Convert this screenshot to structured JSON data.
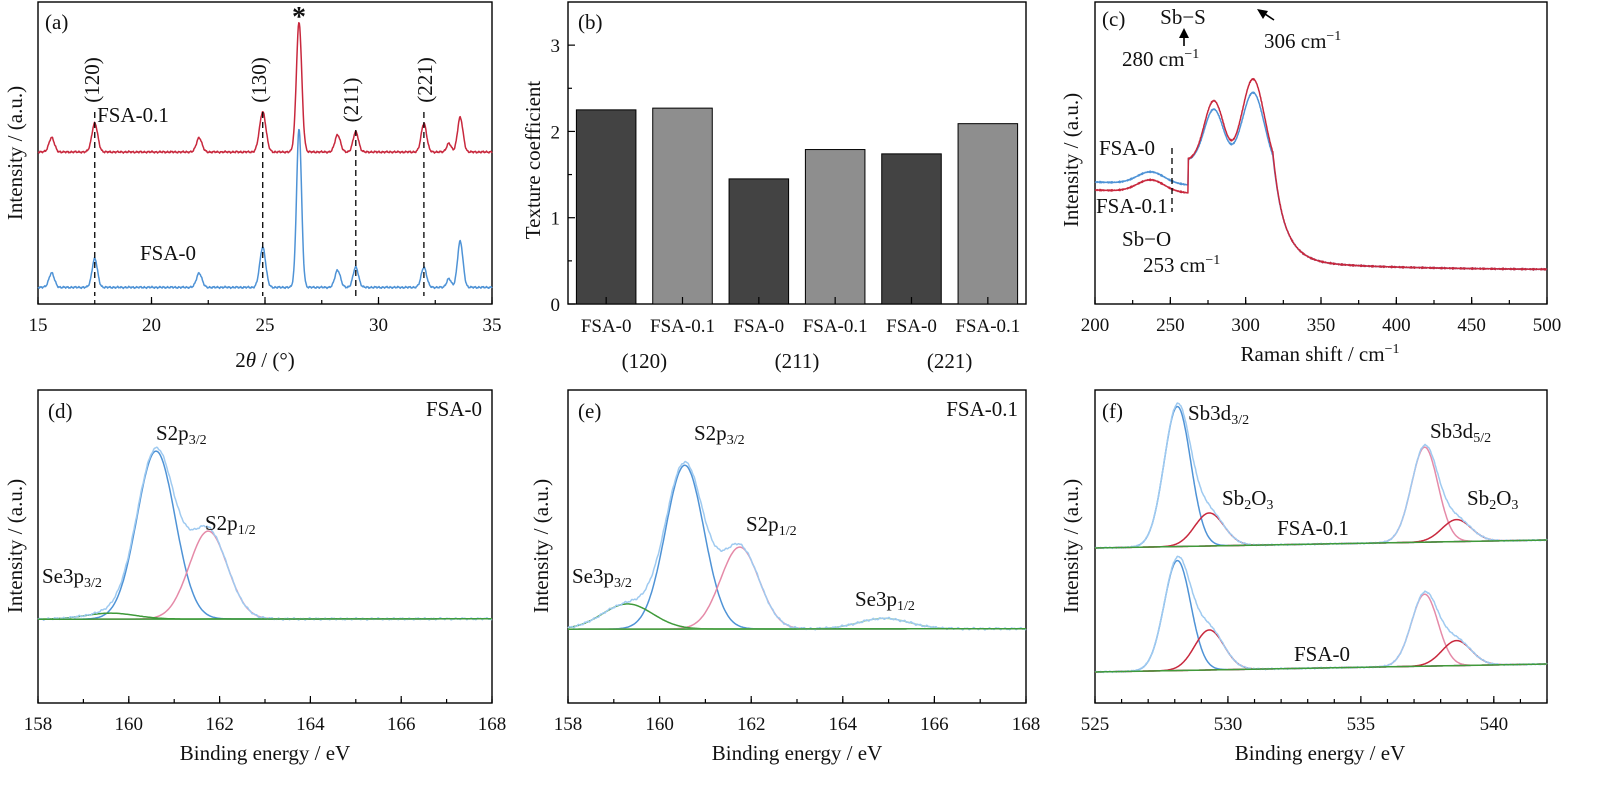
{
  "colors": {
    "red": "#c8283d",
    "blue": "#4f93d6",
    "light_blue": "#9fcaf0",
    "pink": "#e58aa8",
    "green": "#3f9a3a",
    "light_green": "#a8d39b",
    "dark_bar": "#434343",
    "light_bar": "#8e8e8e"
  },
  "chart_data": [
    {
      "panel": "(a)",
      "type": "line",
      "xlabel_pre": "2",
      "xlabel_theta": "θ",
      "xlabel_post": " / (°)",
      "ylabel": "Intensity / (a.u.)",
      "xlim": [
        15,
        35
      ],
      "xticks": [
        "15",
        "20",
        "25",
        "30",
        "35"
      ],
      "series": [
        {
          "name": "FSA-0.1",
          "color": "red",
          "baseline": 0.5,
          "peaks": [
            [
              15.6,
              0.05,
              0.12
            ],
            [
              17.5,
              0.1,
              0.13
            ],
            [
              22.1,
              0.05,
              0.12
            ],
            [
              24.9,
              0.14,
              0.14
            ],
            [
              26.5,
              0.45,
              0.12
            ],
            [
              28.2,
              0.06,
              0.12
            ],
            [
              29.0,
              0.07,
              0.12
            ],
            [
              32.0,
              0.1,
              0.12
            ],
            [
              33.1,
              0.03,
              0.1
            ],
            [
              33.6,
              0.12,
              0.12
            ]
          ]
        },
        {
          "name": "FSA-0",
          "color": "blue",
          "baseline": 0.03,
          "peaks": [
            [
              15.6,
              0.05,
              0.12
            ],
            [
              17.5,
              0.1,
              0.12
            ],
            [
              22.1,
              0.05,
              0.12
            ],
            [
              24.9,
              0.14,
              0.13
            ],
            [
              26.5,
              0.55,
              0.11
            ],
            [
              28.2,
              0.06,
              0.12
            ],
            [
              29.0,
              0.07,
              0.12
            ],
            [
              32.0,
              0.07,
              0.12
            ],
            [
              33.1,
              0.03,
              0.1
            ],
            [
              33.6,
              0.16,
              0.12
            ]
          ]
        }
      ],
      "annotations": [
        {
          "text": "(120)",
          "x": 17.5
        },
        {
          "text": "(130)",
          "x": 24.9
        },
        {
          "text": "(211)",
          "x": 29.0
        },
        {
          "text": "(221)",
          "x": 32.0
        },
        {
          "text": "*",
          "x": 26.5
        }
      ]
    },
    {
      "panel": "(b)",
      "type": "bar",
      "ylabel": "Texture coefficient",
      "ylim": [
        0,
        3.5
      ],
      "yticks": [
        "0",
        "1",
        "2",
        "3"
      ],
      "categories": [
        "FSA-0",
        "FSA-0.1",
        "FSA-0",
        "FSA-0.1",
        "FSA-0",
        "FSA-0.1"
      ],
      "groups": [
        "(120)",
        "(211)",
        "(221)"
      ],
      "values": [
        2.25,
        2.27,
        1.45,
        1.79,
        1.74,
        2.09
      ]
    },
    {
      "panel": "(c)",
      "type": "line",
      "xlabel_pre": "Raman shift / cm",
      "xlabel_sup": "−1",
      "ylabel": "Intensity / (a.u.)",
      "xlim": [
        200,
        500
      ],
      "xticks": [
        "200",
        "250",
        "300",
        "350",
        "400",
        "450",
        "500"
      ],
      "series": [
        {
          "name": "FSA-0",
          "color": "blue"
        },
        {
          "name": "FSA-0.1",
          "color": "red"
        }
      ],
      "annotations": {
        "sbs": "Sb−S",
        "p280": "280 cm",
        "p306": "306 cm",
        "sbo": "Sb−O",
        "p253": "253 cm",
        "sup": "−1"
      }
    },
    {
      "panel": "(d)",
      "type": "line",
      "sample": "FSA-0",
      "xlabel": "Binding energy / eV",
      "ylabel": "Intensity / (a.u.)",
      "xlim": [
        158,
        168
      ],
      "xticks": [
        "158",
        "160",
        "162",
        "164",
        "166",
        "168"
      ],
      "series": [
        {
          "name": "S2p",
          "sub": "3/2",
          "color": "blue",
          "center": 160.6,
          "height": 0.84
        },
        {
          "name": "S2p",
          "sub": "1/2",
          "color": "pink",
          "center": 161.75,
          "height": 0.44
        },
        {
          "name": "Se3p",
          "sub": "3/2",
          "color": "green",
          "center": 159.6,
          "height": 0.03
        }
      ]
    },
    {
      "panel": "(e)",
      "type": "line",
      "sample": "FSA-0.1",
      "xlabel": "Binding energy / eV",
      "ylabel": "Intensity / (a.u.)",
      "xlim": [
        158,
        168
      ],
      "xticks": [
        "158",
        "160",
        "162",
        "164",
        "166",
        "168"
      ],
      "series": [
        {
          "name": "S2p",
          "sub": "3/2",
          "color": "blue",
          "center": 160.55,
          "height": 0.78
        },
        {
          "name": "S2p",
          "sub": "1/2",
          "color": "pink",
          "center": 161.75,
          "height": 0.39
        },
        {
          "name": "Se3p",
          "sub": "3/2",
          "color": "green",
          "center": 159.3,
          "height": 0.12
        },
        {
          "name": "Se3p",
          "sub": "1/2",
          "color": "light_green",
          "center": 164.9,
          "height": 0.05
        }
      ]
    },
    {
      "panel": "(f)",
      "type": "line",
      "xlabel": "Binding energy / eV",
      "ylabel": "Intensity / (a.u.)",
      "xlim": [
        525,
        542
      ],
      "xticks": [
        "525",
        "530",
        "535",
        "540"
      ],
      "samples": [
        "FSA-0.1",
        "FSA-0"
      ],
      "series": [
        {
          "name": "Sb3d",
          "sub": "3/2",
          "color": "blue",
          "center": 528.1
        },
        {
          "name": "Sb",
          "sub": "2",
          "tail": "O",
          "sub2": "3",
          "color": "red",
          "center": 529.3
        },
        {
          "name": "Sb3d",
          "sub": "5/2",
          "color": "pink",
          "center": 537.4
        },
        {
          "name": "Sb",
          "sub": "2",
          "tail": "O",
          "sub2": "3",
          "color": "red",
          "center": 538.6
        }
      ]
    }
  ]
}
